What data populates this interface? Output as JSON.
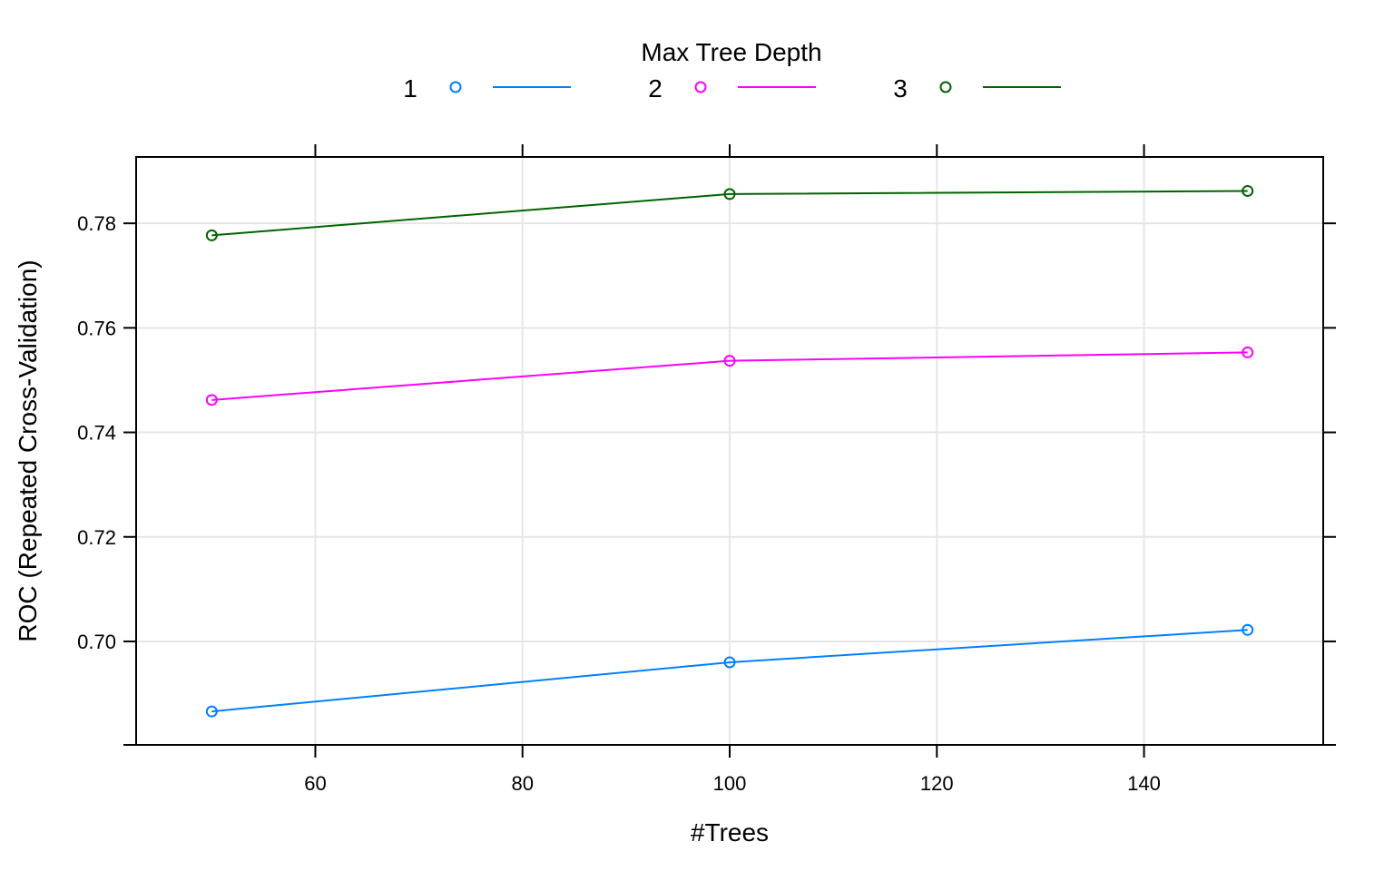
{
  "chart_data": {
    "type": "line",
    "title": "",
    "xlabel": "#Trees",
    "ylabel": "ROC (Repeated Cross-Validation)",
    "xlim": [
      42.7,
      157.3
    ],
    "ylim": [
      0.6802,
      0.7927
    ],
    "xticks": [
      60,
      80,
      100,
      120,
      140
    ],
    "yticks": [
      0.7,
      0.72,
      0.74,
      0.76,
      0.78
    ],
    "ytick_labels": [
      "0.70",
      "0.72",
      "0.74",
      "0.76",
      "0.78"
    ],
    "x": [
      50,
      100,
      150
    ],
    "grid": true,
    "legend": {
      "title": "Max Tree Depth",
      "position": "top"
    },
    "series": [
      {
        "name": "1",
        "color": "#0080ff",
        "values": [
          0.6866,
          0.696,
          0.7022
        ]
      },
      {
        "name": "2",
        "color": "#ff00ff",
        "values": [
          0.7462,
          0.7537,
          0.7553
        ]
      },
      {
        "name": "3",
        "color": "#006400",
        "values": [
          0.7777,
          0.7856,
          0.7862
        ]
      }
    ]
  }
}
